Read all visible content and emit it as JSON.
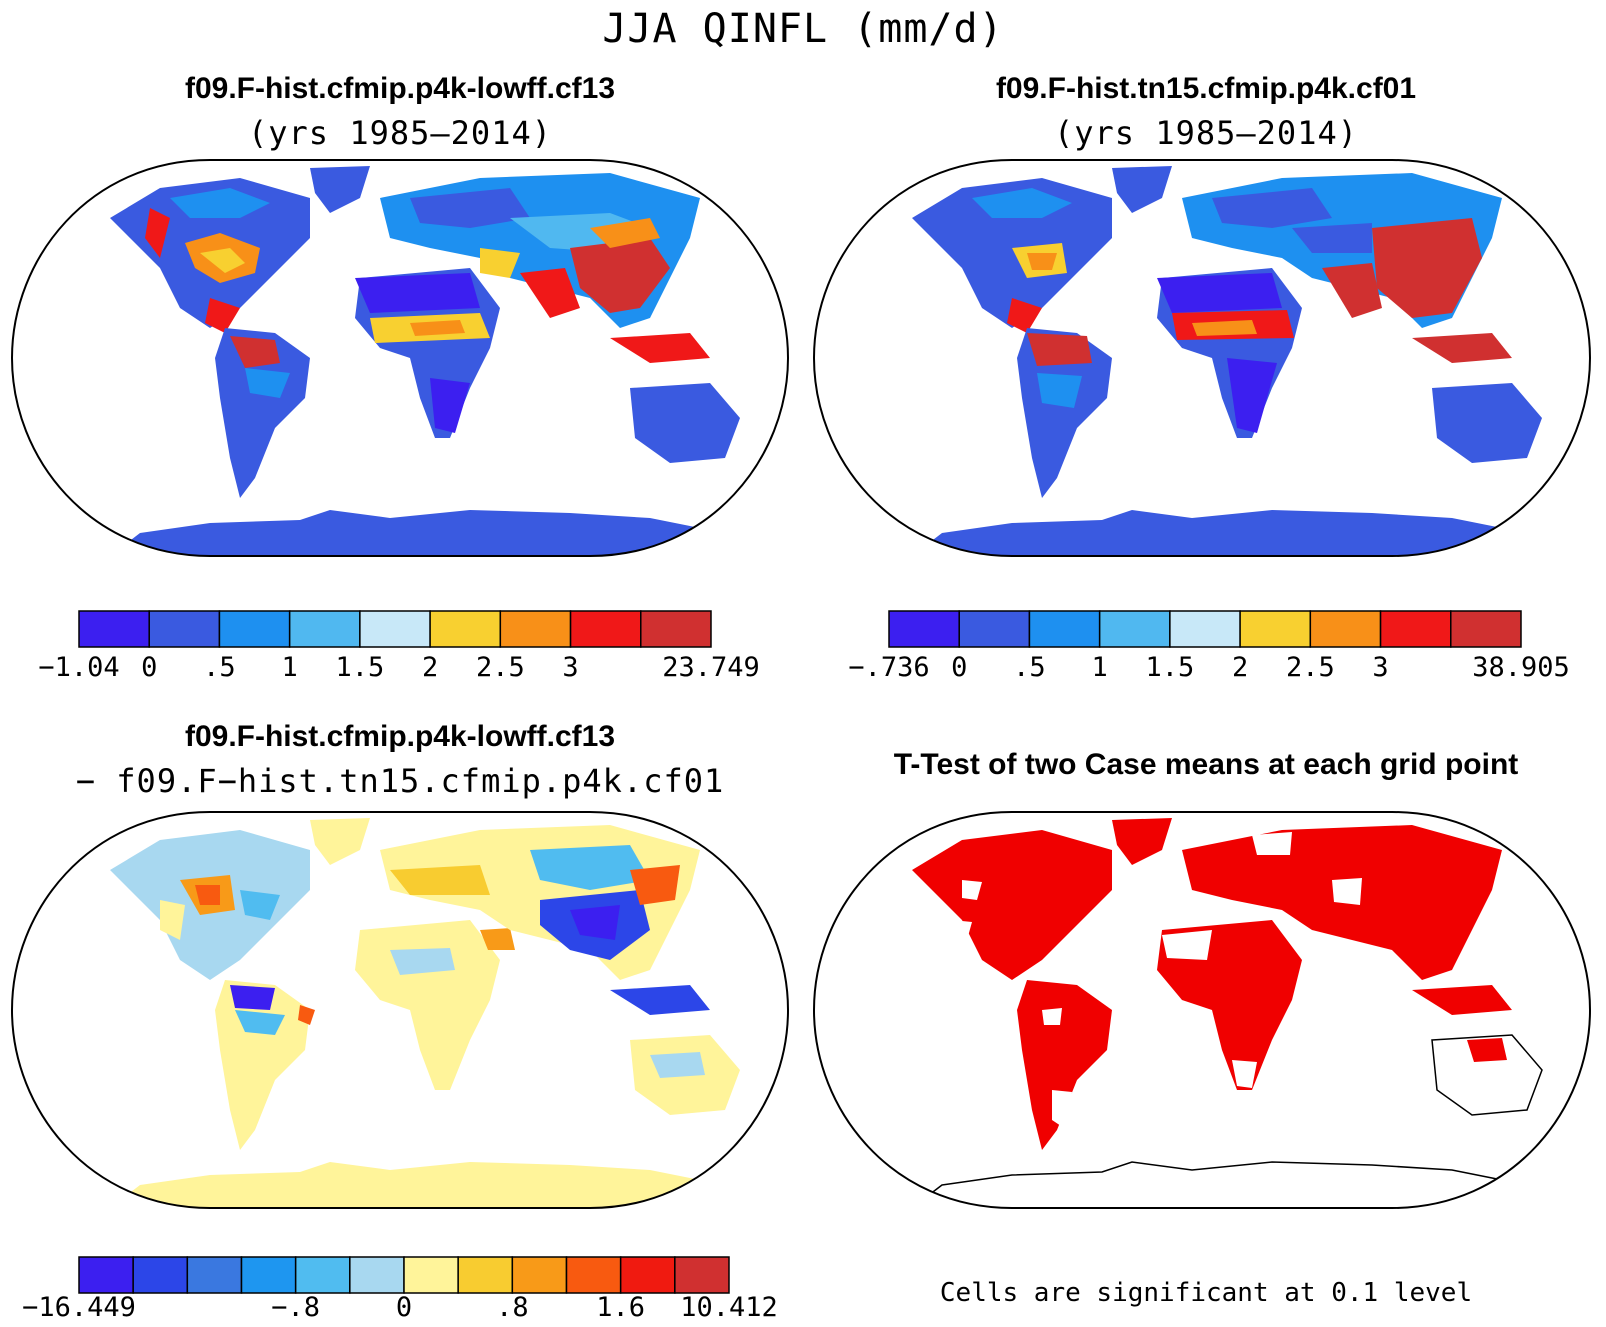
{
  "figure": {
    "title": "JJA QINFL (mm/d)"
  },
  "panels": {
    "top_left": {
      "title": "f09.F-hist.cfmip.p4k-lowff.cf13",
      "subtitle": "(yrs 1985–2014)",
      "map_field": "qinfl-climatology",
      "colorbar": {
        "colors": [
          "#3c1ff0",
          "#3a5ae0",
          "#1e90f0",
          "#50b8f0",
          "#c8e8f8",
          "#f8d030",
          "#f89018",
          "#f01818",
          "#d03030"
        ],
        "labels": [
          "−1.04",
          "0",
          ".5",
          "1",
          "1.5",
          "2",
          "2.5",
          "3",
          "23.749"
        ]
      }
    },
    "top_right": {
      "title": "f09.F-hist.tn15.cfmip.p4k.cf01",
      "subtitle": "(yrs 1985–2014)",
      "map_field": "qinfl-climatology",
      "colorbar": {
        "colors": [
          "#3c1ff0",
          "#3a5ae0",
          "#1e90f0",
          "#50b8f0",
          "#c8e8f8",
          "#f8d030",
          "#f89018",
          "#f01818",
          "#d03030"
        ],
        "labels": [
          "−.736",
          "0",
          ".5",
          "1",
          "1.5",
          "2",
          "2.5",
          "3",
          "38.905"
        ]
      }
    },
    "bottom_left": {
      "title": "f09.F-hist.cfmip.p4k-lowff.cf13",
      "subtitle": "− f09.F−hist.tn15.cfmip.p4k.cf01",
      "map_field": "qinfl-difference",
      "colorbar": {
        "colors": [
          "#3c1ff0",
          "#2c46e8",
          "#3a78e0",
          "#1e96f0",
          "#50bcf0",
          "#a8d8f0",
          "#fff49a",
          "#f8cc30",
          "#f89a18",
          "#f85a10",
          "#f01a10",
          "#d03030"
        ],
        "labels": [
          "−16.449",
          "−.8",
          "0",
          ".8",
          "1.6",
          "10.412"
        ]
      }
    },
    "bottom_right": {
      "title": "T-Test of two Case means at each grid point",
      "map_field": "significance-mask",
      "note": "Cells are significant at 0.1 level"
    }
  }
}
